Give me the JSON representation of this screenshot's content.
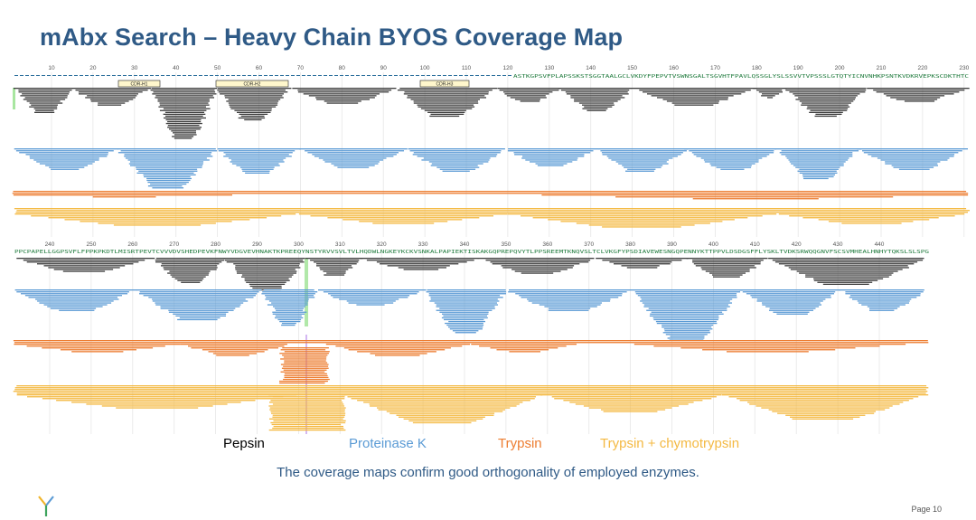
{
  "title": "mAbx Search – Heavy Chain BYOS Coverage Map",
  "colors": {
    "pepsin": "#3c3c3c",
    "proteinase_k": "#5b9bd5",
    "trypsin": "#ed7d31",
    "trypsin_chymo": "#f4b942",
    "title": "#2f5a86",
    "sequence": "#1e7a3c"
  },
  "map": {
    "row1": {
      "ruler_ticks": [
        10,
        20,
        30,
        40,
        50,
        60,
        70,
        80,
        90,
        100,
        110,
        120,
        130,
        140,
        150,
        160,
        170,
        180,
        190,
        200,
        210,
        220,
        230
      ],
      "sequence_visible": "ASTKGPSVFPLAPSSKSTSGGTAALGCLVKDYFPEPVTVSWNSGALTSGVHTFPAVLQSSGLYSLSSVVTVPSSSLGTQTYICNVNHKPSNTKVDKRVEPKSCDKTHTC",
      "cdr_labels": [
        "CDR-H1",
        "CDR-H2",
        "CDR-H3"
      ]
    },
    "row2": {
      "ruler_ticks": [
        240,
        250,
        260,
        270,
        280,
        290,
        300,
        310,
        320,
        330,
        340,
        350,
        360,
        370,
        380,
        390,
        400,
        410,
        420,
        430,
        440
      ],
      "sequence_visible": "PPCPAPELLGGPSVFLFPPKPKDTLMISRTPEVTCVVVDVSHEDPEVKFNWYVDGVEVHNAKTKPREEQYNSTYRVVSVLTVLHQDWLNGKEYKCKVSNKALPAPIEKTISKAKGQPREPQVYTLPPSREEMTKNQVSLTCLVKGFYPSDIAVEWESNGQPENNYKTTPPVLDSDGSFFLYSKLTVDKSRWQQGNVFSCSVMHEALHNHYTQKSLSLSPG"
    }
  },
  "legend": [
    {
      "label": "Pepsin",
      "color": "#000000"
    },
    {
      "label": "Proteinase K",
      "color": "#5b9bd5"
    },
    {
      "label": "Trypsin",
      "color": "#ed7d31"
    },
    {
      "label": "Trypsin + chymotrypsin",
      "color": "#f4b942"
    }
  ],
  "caption": "The coverage maps confirm good orthogonality of employed enzymes.",
  "page_label": "Page 10"
}
